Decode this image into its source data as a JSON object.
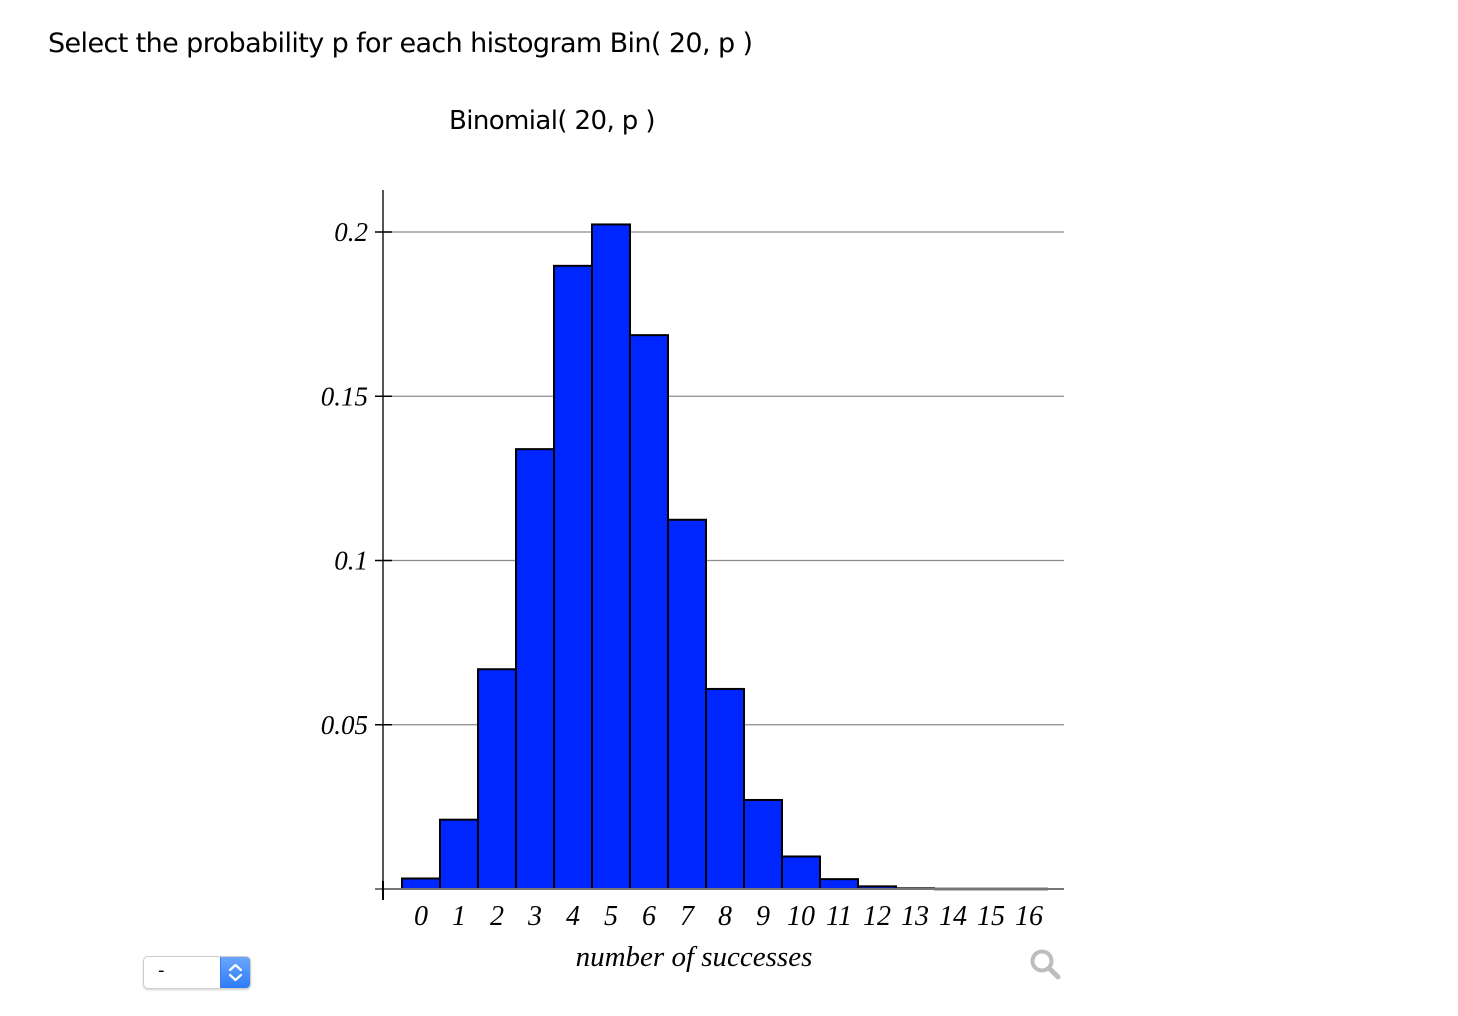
{
  "question": {
    "text": "Select the probability p for each histogram Bin( 20, p )"
  },
  "chart": {
    "title": "Binomial( 20, p )",
    "xlabel": "number of successes",
    "bar_color": "#0026ff",
    "bar_border": "#000000",
    "grid_color": "#8c8c8c"
  },
  "chart_data": {
    "type": "bar",
    "title": "Binomial( 20, p )",
    "xlabel": "number of successes",
    "ylabel": "",
    "categories": [
      "0",
      "1",
      "2",
      "3",
      "4",
      "5",
      "6",
      "7",
      "8",
      "9",
      "10",
      "11",
      "12",
      "13",
      "14",
      "15",
      "16"
    ],
    "values": [
      0.0032,
      0.0211,
      0.0669,
      0.1339,
      0.1897,
      0.2023,
      0.1686,
      0.1124,
      0.0609,
      0.0271,
      0.0099,
      0.003,
      0.0008,
      0.0002,
      0.0,
      0.0,
      0.0
    ],
    "yticks": [
      0.05,
      0.1,
      0.15,
      0.2
    ],
    "ytick_labels": [
      "0.05",
      "0.1",
      "0.15",
      "0.2"
    ],
    "ylim": [
      0,
      0.215
    ],
    "grid": true,
    "legend": null
  },
  "select": {
    "value": "-",
    "icon": "up-down-chevron-icon"
  },
  "zoom_button": {
    "icon": "magnifier-icon"
  }
}
